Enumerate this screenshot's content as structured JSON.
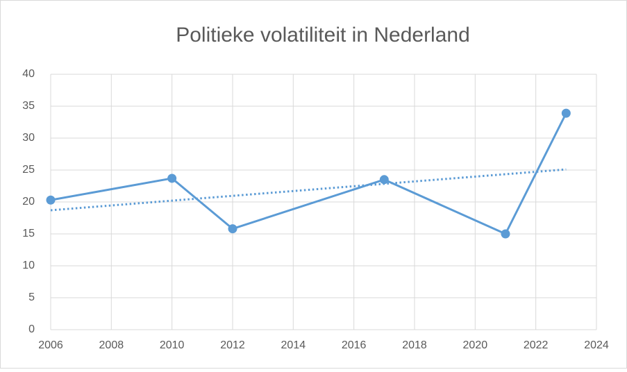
{
  "chart_data": {
    "type": "line",
    "title": "Politieke volatiliteit in Nederland",
    "x": [
      2006,
      2010,
      2012,
      2017,
      2021,
      2023
    ],
    "series": [
      {
        "color": "#5b9bd5",
        "values": [
          20.3,
          23.7,
          15.8,
          23.5,
          15.0,
          33.9
        ]
      }
    ],
    "trendline": {
      "color": "#5b9bd5",
      "style": "dotted",
      "x": [
        2006,
        2023
      ],
      "values": [
        18.7,
        25.1
      ]
    },
    "xlim": [
      2006,
      2024
    ],
    "xticks": [
      2006,
      2008,
      2010,
      2012,
      2014,
      2016,
      2018,
      2020,
      2022,
      2024
    ],
    "ylim": [
      0,
      40
    ],
    "yticks": [
      0,
      5,
      10,
      15,
      20,
      25,
      30,
      35,
      40
    ],
    "grid": true
  }
}
